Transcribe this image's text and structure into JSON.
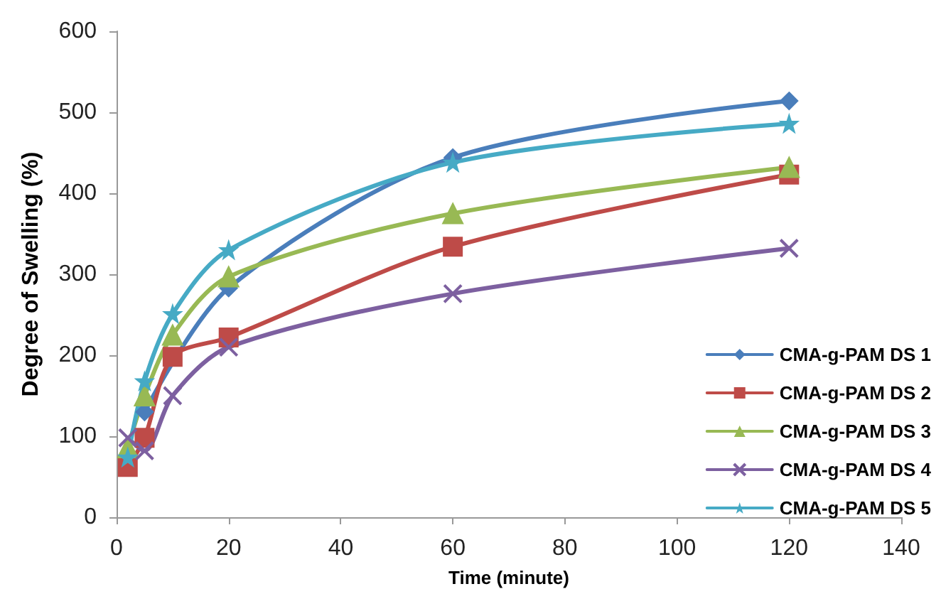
{
  "chart_data": {
    "type": "line",
    "xlabel": "Time (minute)",
    "ylabel": "Degree of Swelling (%)",
    "xlim": [
      0,
      140
    ],
    "xticks": [
      0,
      20,
      40,
      60,
      80,
      100,
      120,
      140
    ],
    "ylim": [
      0,
      600
    ],
    "yticks": [
      0,
      100,
      200,
      300,
      400,
      500,
      600
    ],
    "grid": false,
    "legend": "right",
    "line_style": "solid",
    "series": [
      {
        "name": "CMA-g-PAM DS 1",
        "color": "#4a7ebb",
        "marker": "diamond",
        "x": [
          5,
          10,
          20,
          60,
          120
        ],
        "values": [
          130,
          null,
          283,
          444,
          514
        ]
      },
      {
        "name": "CMA-g-PAM DS 2",
        "color": "#be4b48",
        "marker": "square",
        "x": [
          2,
          5,
          10,
          20,
          60,
          120
        ],
        "values": [
          62,
          98,
          198,
          222,
          334,
          423
        ]
      },
      {
        "name": "CMA-g-PAM DS 3",
        "color": "#98b954",
        "marker": "triangle",
        "x": [
          2,
          5,
          10,
          20,
          60,
          120
        ],
        "values": [
          86,
          150,
          225,
          297,
          375,
          432
        ]
      },
      {
        "name": "CMA-g-PAM DS 4",
        "color": "#7d60a0",
        "marker": "cross",
        "x": [
          2,
          5,
          10,
          20,
          60,
          120
        ],
        "values": [
          98,
          82,
          150,
          210,
          276,
          332
        ]
      },
      {
        "name": "CMA-g-PAM DS 5",
        "color": "#46aac5",
        "marker": "star",
        "x": [
          2,
          5,
          10,
          20,
          60,
          120
        ],
        "values": [
          74,
          168,
          251,
          330,
          438,
          486
        ]
      }
    ]
  }
}
